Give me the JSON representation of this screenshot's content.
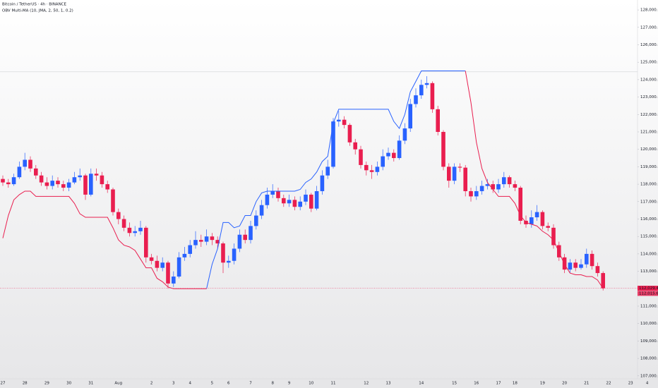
{
  "chart_data": {
    "type": "candlestick",
    "title": "Bitcoin / TetherUS · 4h · BINANCE",
    "subtitle": "OBV Multi-MA (10, JMA, 2, 50, 1, 0.2)",
    "up_color": "#2962ff",
    "down_color": "#e91e4f",
    "line_up_color": "#2962ff",
    "line_down_color": "#e91e4f",
    "ylim": [
      106830,
      128570
    ],
    "yticks": [
      {
        "value": 107000,
        "label": "107,000.00"
      },
      {
        "value": 108000,
        "label": "108,000.00"
      },
      {
        "value": 109000,
        "label": "109,000.00"
      },
      {
        "value": 110000,
        "label": "110,000.00"
      },
      {
        "value": 111000,
        "label": "111,000.00"
      },
      {
        "value": 112000,
        "label": "112,000.00"
      },
      {
        "value": 113000,
        "label": "113,000.00"
      },
      {
        "value": 114000,
        "label": "114,000.00"
      },
      {
        "value": 115000,
        "label": "115,000.00"
      },
      {
        "value": 116000,
        "label": "116,000.00"
      },
      {
        "value": 117000,
        "label": "117,000.00"
      },
      {
        "value": 118000,
        "label": "118,000.00"
      },
      {
        "value": 119000,
        "label": "119,000.00"
      },
      {
        "value": 120000,
        "label": "120,000.00"
      },
      {
        "value": 121000,
        "label": "121,000.00"
      },
      {
        "value": 122000,
        "label": "122,000.00"
      },
      {
        "value": 123000,
        "label": "123,000.00"
      },
      {
        "value": 124000,
        "label": "124,000.00"
      },
      {
        "value": 125000,
        "label": "125,000.00"
      },
      {
        "value": 126000,
        "label": "126,000.00"
      },
      {
        "value": 127000,
        "label": "127,000.00"
      },
      {
        "value": 128000,
        "label": "128,000.00"
      }
    ],
    "grid": false,
    "hline": 124450,
    "categories": [
      "27",
      null,
      null,
      null,
      "28",
      null,
      null,
      null,
      "29",
      null,
      null,
      null,
      "30",
      null,
      null,
      null,
      "31",
      null,
      null,
      null,
      null,
      "Aug",
      null,
      null,
      null,
      null,
      null,
      "2",
      null,
      null,
      null,
      "3",
      null,
      null,
      "4",
      null,
      null,
      null,
      "5",
      null,
      null,
      "6",
      null,
      null,
      null,
      "7",
      null,
      null,
      null,
      "8",
      null,
      null,
      "9",
      null,
      null,
      null,
      "10",
      null,
      null,
      null,
      "11",
      null,
      null,
      null,
      null,
      null,
      "12",
      null,
      null,
      null,
      "13",
      null,
      null,
      null,
      null,
      null,
      "14",
      null,
      null,
      null,
      null,
      null,
      "15",
      null,
      null,
      null,
      "16",
      null,
      null,
      null,
      "17",
      null,
      null,
      "18",
      null,
      null,
      null,
      null,
      "19",
      null,
      null,
      null,
      "20",
      null,
      null,
      null,
      "21",
      null,
      null,
      null,
      "22",
      null,
      null,
      null,
      "23",
      null,
      null,
      "4"
    ],
    "open": [
      118300,
      118100,
      118000,
      118400,
      119000,
      119400,
      118900,
      118500,
      118100,
      117900,
      118200,
      118000,
      117800,
      118100,
      118400,
      118500,
      117400,
      118600,
      118500,
      118000,
      117700,
      116400,
      116000,
      115500,
      115200,
      115300,
      115500,
      113800,
      113600,
      113200,
      113500,
      112300,
      112700,
      113800,
      114000,
      114500,
      114800,
      114700,
      115000,
      114800,
      114600,
      113500,
      113600,
      114300,
      115100,
      114800,
      115600,
      116200,
      116800,
      117400,
      117600,
      117200,
      116900,
      117100,
      116700,
      117000,
      117400,
      116600,
      117600,
      118500,
      119000,
      121600,
      121700,
      121400,
      120400,
      120000,
      119100,
      118800,
      118700,
      119000,
      119600,
      119800,
      119500,
      120500,
      121200,
      122600,
      123100,
      123700,
      123800,
      122300,
      121000,
      119000,
      118200,
      119000,
      118950,
      117600,
      117300,
      117600,
      117900,
      118000,
      117700,
      118000,
      118400,
      118000,
      117800,
      115900,
      115700,
      116100,
      116400,
      115600,
      115500,
      114500,
      113800,
      113100,
      113500,
      113200,
      113400,
      114000,
      113300,
      112900,
      null,
      null,
      null,
      null,
      null,
      null,
      null,
      null
    ],
    "high": [
      118500,
      118300,
      118600,
      119300,
      119800,
      119600,
      119100,
      118700,
      118400,
      118500,
      118400,
      118200,
      118300,
      118700,
      118900,
      118600,
      118900,
      118900,
      118700,
      118200,
      117800,
      116600,
      116200,
      115800,
      115600,
      115900,
      115600,
      114000,
      113900,
      113800,
      113600,
      113000,
      114100,
      114400,
      114800,
      115300,
      115100,
      115400,
      115200,
      115000,
      114700,
      113900,
      114600,
      115400,
      115400,
      115900,
      116500,
      117100,
      117800,
      118000,
      117800,
      117400,
      117400,
      117300,
      117300,
      117700,
      117500,
      117900,
      118800,
      119400,
      121800,
      122200,
      121900,
      121500,
      120600,
      120200,
      119300,
      119100,
      119300,
      120000,
      120100,
      120000,
      120800,
      121500,
      122900,
      123500,
      124000,
      124200,
      123900,
      122500,
      121100,
      119200,
      119200,
      119200,
      119100,
      117800,
      117900,
      118200,
      118300,
      118200,
      118300,
      118700,
      118500,
      118200,
      117900,
      116200,
      116500,
      116800,
      116500,
      115800,
      115700,
      114700,
      114000,
      113700,
      113700,
      113700,
      114300,
      114200,
      113500,
      113000,
      null,
      null,
      null,
      null,
      null,
      null,
      null,
      null
    ],
    "low": [
      117900,
      117800,
      117900,
      118300,
      118800,
      118700,
      118300,
      117900,
      117700,
      117700,
      117800,
      117600,
      117600,
      118000,
      118200,
      117100,
      117300,
      118200,
      117800,
      117500,
      116200,
      115700,
      115300,
      115000,
      115000,
      115100,
      113500,
      113400,
      113000,
      113000,
      112000,
      112100,
      112600,
      113600,
      113800,
      114300,
      114400,
      114500,
      114500,
      114300,
      112900,
      113200,
      113400,
      114100,
      114600,
      114600,
      115400,
      116000,
      116600,
      117200,
      117000,
      116700,
      116700,
      116500,
      116500,
      116800,
      116400,
      116500,
      117400,
      118300,
      118900,
      121300,
      121200,
      120200,
      119700,
      118900,
      118500,
      118300,
      118500,
      118800,
      119400,
      119300,
      119400,
      120300,
      121000,
      122400,
      122900,
      123500,
      122100,
      120800,
      118800,
      117800,
      118000,
      118700,
      117300,
      117000,
      117100,
      117400,
      117700,
      117500,
      117500,
      117800,
      117800,
      117600,
      115700,
      115500,
      115500,
      115900,
      115400,
      115300,
      114300,
      113600,
      112900,
      112900,
      113000,
      113100,
      113200,
      113100,
      112700,
      111900,
      null,
      null,
      null,
      null,
      null,
      null,
      null,
      null
    ],
    "close": [
      118100,
      118000,
      118400,
      119000,
      119400,
      118900,
      118500,
      118100,
      117900,
      118200,
      118000,
      117800,
      118100,
      118400,
      118500,
      117400,
      118600,
      118500,
      118000,
      117700,
      116400,
      116000,
      115500,
      115200,
      115300,
      115500,
      113800,
      113600,
      113200,
      113500,
      112300,
      112700,
      113800,
      114000,
      114500,
      114800,
      114700,
      115000,
      114800,
      114600,
      113500,
      113600,
      114300,
      115100,
      114800,
      115600,
      116200,
      116800,
      117400,
      117600,
      117200,
      116900,
      117100,
      116700,
      117000,
      117400,
      116600,
      117600,
      118500,
      119000,
      121600,
      121700,
      121400,
      120400,
      120000,
      119100,
      118800,
      118700,
      119000,
      119600,
      119800,
      119500,
      120500,
      121200,
      122600,
      123100,
      123700,
      123800,
      122300,
      121000,
      119000,
      118200,
      119000,
      118950,
      117600,
      117300,
      117600,
      117900,
      118000,
      117700,
      118000,
      118400,
      118000,
      117800,
      115900,
      115700,
      116100,
      116400,
      115600,
      115500,
      114500,
      113800,
      113100,
      113500,
      113200,
      113400,
      114000,
      113300,
      112900,
      112029.44,
      null,
      null,
      null,
      null,
      null,
      null,
      null,
      null
    ],
    "close_value_label": "112,029.44",
    "line_up": [
      null,
      null,
      null,
      null,
      null,
      null,
      null,
      null,
      null,
      null,
      null,
      null,
      null,
      null,
      null,
      null,
      null,
      null,
      null,
      null,
      null,
      null,
      null,
      null,
      null,
      null,
      null,
      null,
      null,
      null,
      null,
      null,
      null,
      null,
      null,
      null,
      null,
      112000,
      113400,
      114300,
      115800,
      115800,
      115500,
      115600,
      116200,
      116200,
      117000,
      117500,
      117600,
      117600,
      117600,
      117600,
      117600,
      117600,
      117700,
      118100,
      118300,
      118700,
      119300,
      119600,
      121500,
      122300,
      122300,
      122300,
      122300,
      122300,
      122300,
      122300,
      122300,
      122300,
      122300,
      121600,
      121200,
      122000,
      123300,
      123900,
      124500,
      124500,
      124500,
      124500,
      124500,
      124500,
      124500,
      124500,
      124500,
      null,
      null,
      null,
      null,
      null,
      null,
      null,
      null,
      null,
      null,
      null,
      null,
      null,
      null,
      null,
      null,
      null,
      null,
      null,
      null,
      null,
      null,
      null,
      null,
      null,
      null,
      null,
      null,
      null
    ],
    "line_down": [
      114900,
      116200,
      117100,
      117400,
      117600,
      117600,
      117300,
      117300,
      117300,
      117300,
      117300,
      117300,
      117300,
      116900,
      116300,
      116100,
      116100,
      116100,
      116100,
      116100,
      115500,
      114800,
      114500,
      114400,
      114200,
      113700,
      113200,
      113200,
      112600,
      112400,
      112100,
      112000,
      112000,
      112000,
      112000,
      112000,
      112000,
      112000,
      null,
      null,
      null,
      null,
      null,
      null,
      null,
      null,
      null,
      null,
      null,
      null,
      null,
      null,
      null,
      null,
      null,
      null,
      null,
      null,
      null,
      null,
      null,
      null,
      null,
      null,
      null,
      null,
      null,
      null,
      null,
      null,
      null,
      null,
      null,
      null,
      null,
      null,
      null,
      null,
      null,
      null,
      null,
      null,
      null,
      null,
      124500,
      122700,
      120400,
      118900,
      118100,
      117700,
      117300,
      117300,
      117300,
      116900,
      116200,
      115800,
      115700,
      115600,
      115300,
      115100,
      114800,
      114100,
      113400,
      112900,
      112800,
      112800,
      112700,
      112700,
      112500,
      112015.67,
      null,
      null,
      null,
      null,
      null,
      null,
      null,
      null
    ],
    "line_value_label": "112,015.67"
  }
}
